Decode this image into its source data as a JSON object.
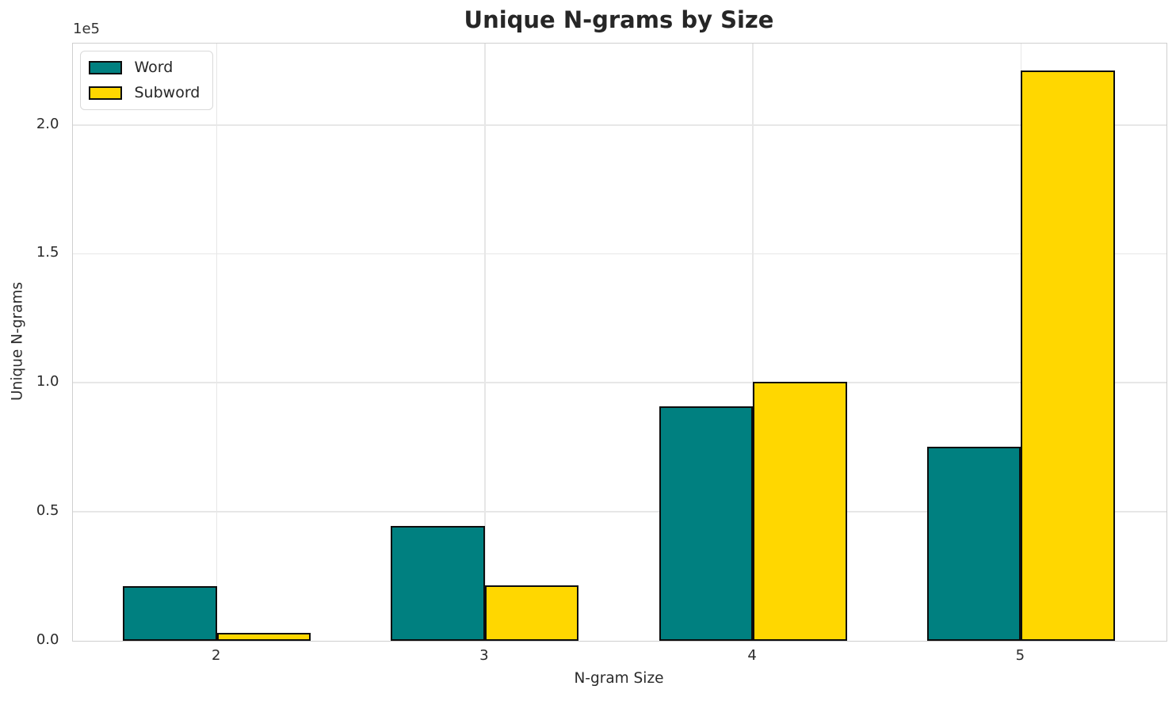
{
  "title": "Unique N-grams by Size",
  "axes": {
    "xlabel": "N-gram Size",
    "ylabel": "Unique N-grams",
    "offset_label": "1e5",
    "x_ticks": [
      "2",
      "3",
      "4",
      "5"
    ],
    "y_ticks": [
      "0.0",
      "0.5",
      "1.0",
      "1.5",
      "2.0"
    ]
  },
  "legend": {
    "items": [
      {
        "label": "Word",
        "color": "#008080"
      },
      {
        "label": "Subword",
        "color": "#FFD700"
      }
    ]
  },
  "colors": {
    "word_series": "#008080",
    "subword_series": "#FFD700",
    "bar_edge": "#0d0d0d",
    "grid": "#e7e7e7",
    "spine": "#cfcfcf",
    "text": "#262626"
  },
  "chart_data": {
    "type": "bar",
    "title": "Unique N-grams by Size",
    "xlabel": "N-gram Size",
    "ylabel": "Unique N-grams",
    "categories": [
      "2",
      "3",
      "4",
      "5"
    ],
    "series": [
      {
        "name": "Word",
        "color": "#008080",
        "values": [
          21000,
          44300,
          90800,
          75300
        ]
      },
      {
        "name": "Subword",
        "color": "#FFD700",
        "values": [
          3000,
          21400,
          100400,
          221200
        ]
      }
    ],
    "y_tick_values": [
      0,
      50000,
      100000,
      150000,
      200000
    ],
    "y_scale_offset": "1e5",
    "ylim": [
      0,
      231600
    ],
    "grid": true,
    "legend_position": "upper left",
    "bar_edge_color": "#0d0d0d"
  }
}
